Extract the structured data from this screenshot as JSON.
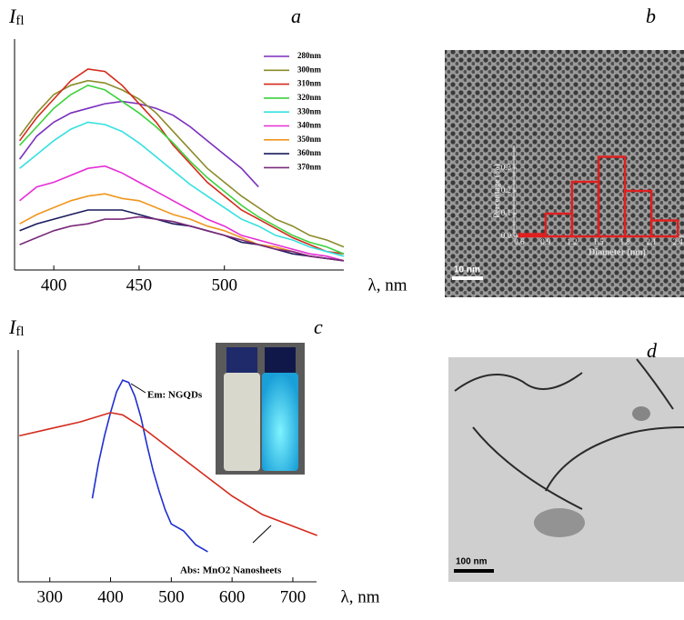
{
  "chart_data": [
    {
      "type": "line",
      "panel_label": "a",
      "y_label": "I",
      "y_label_sub": "fl",
      "x_label": "λ, nm",
      "x": [
        380,
        390,
        400,
        410,
        420,
        430,
        440,
        450,
        460,
        470,
        480,
        490,
        500,
        510,
        520,
        530,
        540,
        550,
        560,
        570
      ],
      "xlim": [
        377,
        570
      ],
      "xticks": [
        400,
        450,
        500
      ],
      "ylim": [
        0,
        100
      ],
      "legend": "upper right",
      "series": [
        {
          "name": "280nm",
          "color": "#7b2fbe",
          "values": [
            48,
            58,
            64,
            68,
            70,
            72,
            73,
            72,
            70,
            67,
            62,
            56,
            50,
            44,
            36,
            null,
            null,
            null,
            null,
            null
          ]
        },
        {
          "name": "300nm",
          "color": "#8b8b2a",
          "values": [
            58,
            68,
            76,
            80,
            82,
            81,
            78,
            74,
            68,
            60,
            52,
            44,
            38,
            32,
            27,
            22,
            19,
            15,
            13,
            10
          ]
        },
        {
          "name": "310nm",
          "color": "#d42a1c",
          "values": [
            56,
            66,
            74,
            82,
            87,
            86,
            80,
            72,
            64,
            54,
            46,
            38,
            32,
            26,
            22,
            18,
            14,
            11,
            8,
            7
          ]
        },
        {
          "name": "320nm",
          "color": "#3cd23c",
          "values": [
            54,
            62,
            70,
            76,
            80,
            78,
            73,
            68,
            62,
            55,
            47,
            40,
            34,
            28,
            23,
            19,
            15,
            12,
            10,
            7
          ]
        },
        {
          "name": "330nm",
          "color": "#35e0e0",
          "values": [
            44,
            50,
            56,
            61,
            64,
            63,
            60,
            55,
            49,
            43,
            37,
            32,
            27,
            22,
            19,
            15,
            13,
            10,
            8,
            6
          ]
        },
        {
          "name": "340nm",
          "color": "#e52ed6",
          "values": [
            30,
            36,
            38,
            41,
            44,
            45,
            42,
            38,
            34,
            30,
            26,
            22,
            19,
            15,
            13,
            11,
            9,
            7,
            6,
            4
          ]
        },
        {
          "name": "350nm",
          "color": "#f0961e",
          "values": [
            20,
            24,
            27,
            30,
            32,
            33,
            31,
            30,
            27,
            24,
            22,
            19,
            17,
            14,
            11,
            10,
            8,
            6,
            5,
            4
          ]
        },
        {
          "name": "360nm",
          "color": "#1a1a5c",
          "values": [
            17,
            20,
            22,
            24,
            26,
            26,
            26,
            24,
            22,
            20,
            19,
            17,
            15,
            12,
            11,
            9,
            7,
            6,
            5,
            4
          ]
        },
        {
          "name": "370nm",
          "color": "#7a2a7a",
          "values": [
            11,
            14,
            17,
            19,
            20,
            22,
            22,
            23,
            22,
            21,
            19,
            17,
            15,
            13,
            11,
            9,
            8,
            6,
            5,
            4
          ]
        }
      ]
    },
    {
      "type": "histogram",
      "panel_label": "b",
      "scale_bar": "10 nm",
      "x_label": "Diameter (nm)",
      "y_label": "Percentage (%)",
      "bins": [
        0.6,
        0.9,
        1.2,
        1.5,
        1.8,
        2.1,
        2.4
      ],
      "values": [
        0.01,
        0.1,
        0.24,
        0.35,
        0.2,
        0.07
      ],
      "color": "#e02020",
      "xlim": [
        0.54,
        2.47
      ],
      "xticks": [
        0.6,
        0.9,
        1.2,
        1.5,
        1.8,
        2.1,
        2.4
      ],
      "ylim": [
        0,
        0.4
      ],
      "yticks": [
        {
          "value": 0,
          "label": "0.0"
        },
        0.1,
        0.2,
        0.3
      ]
    },
    {
      "type": "line",
      "panel_label": "c",
      "y_label": "I",
      "y_label_sub": "fl",
      "x_label": "λ, nm",
      "xlim": [
        248,
        739
      ],
      "xticks": [
        300,
        400,
        500,
        600,
        700
      ],
      "ylim": [
        0,
        100
      ],
      "annotations": [
        "Em: NGQDs",
        "Abs: MnO2 Nanosheets"
      ],
      "series": [
        {
          "color": "#1f2fd0",
          "x": [
            370,
            380,
            390,
            400,
            410,
            420,
            430,
            440,
            450,
            460,
            470,
            480,
            490,
            500,
            520,
            540,
            560
          ],
          "values": [
            36,
            51,
            63,
            73,
            82,
            87,
            86,
            80,
            71,
            59,
            48,
            39,
            31,
            25,
            22,
            16,
            13
          ]
        },
        {
          "color": "#d42a1c",
          "x": [
            250,
            300,
            350,
            400,
            420,
            450,
            500,
            550,
            600,
            650,
            700,
            740
          ],
          "values": [
            63,
            66,
            69,
            73,
            72,
            67,
            57,
            47,
            37,
            29,
            24,
            20
          ]
        }
      ]
    }
  ],
  "panel_d": {
    "label": "d",
    "scale_bar": "100 nm"
  }
}
